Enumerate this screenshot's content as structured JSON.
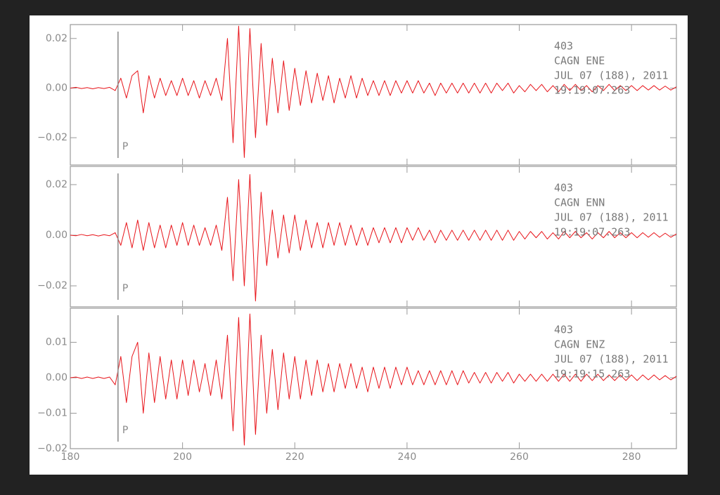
{
  "chart_data": [
    {
      "type": "line",
      "annotations": [
        "403",
        "CAGN   ENE",
        "JUL 07 (188), 2011",
        "19:19:07.263"
      ],
      "markers": [
        {
          "x": 188.5,
          "label": "P"
        }
      ],
      "xlim": [
        180,
        288
      ],
      "xticks": [
        180,
        200,
        220,
        240,
        260,
        280
      ],
      "ylim": [
        -0.031,
        0.0256
      ],
      "yticks": [
        {
          "value": -0.02,
          "label": "−0.02"
        },
        {
          "value": 0,
          "label": "0.00"
        },
        0.02
      ],
      "x": [
        180,
        181,
        182,
        183,
        184,
        185,
        186,
        187,
        188,
        189,
        190,
        191,
        192,
        193,
        194,
        195,
        196,
        197,
        198,
        199,
        200,
        201,
        202,
        203,
        204,
        205,
        206,
        207,
        208,
        209,
        210,
        211,
        212,
        213,
        214,
        215,
        216,
        217,
        218,
        219,
        220,
        221,
        222,
        223,
        224,
        225,
        226,
        227,
        228,
        229,
        230,
        231,
        232,
        233,
        234,
        235,
        236,
        237,
        238,
        239,
        240,
        241,
        242,
        243,
        244,
        245,
        246,
        247,
        248,
        249,
        250,
        251,
        252,
        253,
        254,
        255,
        256,
        257,
        258,
        259,
        260,
        261,
        262,
        263,
        264,
        265,
        266,
        267,
        268,
        269,
        270,
        271,
        272,
        273,
        274,
        275,
        276,
        277,
        278,
        279,
        280,
        281,
        282,
        283,
        284,
        285,
        286,
        287,
        288
      ],
      "series": [
        {
          "color": "#e8141a",
          "values": [
            0,
            0.0003,
            -0.0002,
            0.0002,
            -0.0003,
            0.0002,
            -0.0002,
            0.0003,
            -0.001,
            0.004,
            -0.004,
            0.005,
            0.007,
            -0.01,
            0.005,
            -0.004,
            0.004,
            -0.003,
            0.003,
            -0.003,
            0.004,
            -0.003,
            0.003,
            -0.004,
            0.003,
            -0.003,
            0.004,
            -0.005,
            0.02,
            -0.022,
            0.025,
            -0.028,
            0.024,
            -0.02,
            0.018,
            -0.015,
            0.012,
            -0.01,
            0.011,
            -0.009,
            0.008,
            -0.007,
            0.007,
            -0.006,
            0.006,
            -0.005,
            0.005,
            -0.006,
            0.004,
            -0.004,
            0.005,
            -0.004,
            0.004,
            -0.003,
            0.003,
            -0.003,
            0.003,
            -0.003,
            0.003,
            -0.002,
            0.003,
            -0.002,
            0.003,
            -0.002,
            0.002,
            -0.003,
            0.002,
            -0.002,
            0.002,
            -0.002,
            0.002,
            -0.002,
            0.002,
            -0.002,
            0.002,
            -0.002,
            0.002,
            -0.001,
            0.002,
            -0.002,
            0.001,
            -0.0015,
            0.0015,
            -0.001,
            0.0015,
            -0.0015,
            0.001,
            -0.0015,
            0.0015,
            -0.001,
            0.0015,
            -0.001,
            0.001,
            -0.0015,
            0.001,
            -0.001,
            0.0015,
            -0.001,
            0.001,
            -0.001,
            0.001,
            -0.001,
            0.001,
            -0.0008,
            0.001,
            -0.0008,
            0.0008,
            -0.0008,
            0.0005
          ]
        }
      ]
    },
    {
      "type": "line",
      "annotations": [
        "403",
        "CAGN   ENN",
        "JUL 07 (188), 2011",
        "19:19:07.263"
      ],
      "markers": [
        {
          "x": 188.5,
          "label": "P"
        }
      ],
      "xlim": [
        180,
        288
      ],
      "xticks": [
        180,
        200,
        220,
        240,
        260,
        280
      ],
      "ylim": [
        -0.0283,
        0.0272
      ],
      "yticks": [
        {
          "value": -0.02,
          "label": "−0.02"
        },
        {
          "value": 0,
          "label": "0.00"
        },
        0.02
      ],
      "x": [
        180,
        181,
        182,
        183,
        184,
        185,
        186,
        187,
        188,
        189,
        190,
        191,
        192,
        193,
        194,
        195,
        196,
        197,
        198,
        199,
        200,
        201,
        202,
        203,
        204,
        205,
        206,
        207,
        208,
        209,
        210,
        211,
        212,
        213,
        214,
        215,
        216,
        217,
        218,
        219,
        220,
        221,
        222,
        223,
        224,
        225,
        226,
        227,
        228,
        229,
        230,
        231,
        232,
        233,
        234,
        235,
        236,
        237,
        238,
        239,
        240,
        241,
        242,
        243,
        244,
        245,
        246,
        247,
        248,
        249,
        250,
        251,
        252,
        253,
        254,
        255,
        256,
        257,
        258,
        259,
        260,
        261,
        262,
        263,
        264,
        265,
        266,
        267,
        268,
        269,
        270,
        271,
        272,
        273,
        274,
        275,
        276,
        277,
        278,
        279,
        280,
        281,
        282,
        283,
        284,
        285,
        286,
        287,
        288
      ],
      "series": [
        {
          "color": "#e8141a",
          "values": [
            0,
            -0.0002,
            0.0003,
            -0.0002,
            0.0002,
            -0.0003,
            0.0002,
            -0.0002,
            0.001,
            -0.004,
            0.005,
            -0.005,
            0.006,
            -0.006,
            0.005,
            -0.005,
            0.004,
            -0.005,
            0.004,
            -0.004,
            0.005,
            -0.004,
            0.004,
            -0.004,
            0.003,
            -0.004,
            0.004,
            -0.006,
            0.015,
            -0.018,
            0.022,
            -0.02,
            0.024,
            -0.026,
            0.017,
            -0.012,
            0.01,
            -0.009,
            0.008,
            -0.007,
            0.008,
            -0.006,
            0.006,
            -0.005,
            0.005,
            -0.005,
            0.005,
            -0.004,
            0.005,
            -0.004,
            0.004,
            -0.004,
            0.003,
            -0.004,
            0.003,
            -0.003,
            0.003,
            -0.003,
            0.003,
            -0.003,
            0.003,
            -0.002,
            0.003,
            -0.002,
            0.002,
            -0.003,
            0.002,
            -0.002,
            0.002,
            -0.002,
            0.002,
            -0.002,
            0.002,
            -0.002,
            0.002,
            -0.002,
            0.002,
            -0.002,
            0.002,
            -0.002,
            0.0015,
            -0.0015,
            0.0015,
            -0.001,
            0.0015,
            -0.0015,
            0.001,
            -0.0015,
            0.0015,
            -0.001,
            0.0015,
            -0.001,
            0.001,
            -0.0015,
            0.001,
            -0.001,
            0.0015,
            -0.001,
            0.001,
            -0.001,
            0.001,
            -0.001,
            0.001,
            -0.0008,
            0.001,
            -0.0008,
            0.0008,
            -0.0008,
            0.0005
          ]
        }
      ]
    },
    {
      "type": "line",
      "annotations": [
        "403",
        "CAGN   ENZ",
        "JUL 07 (188), 2011",
        "19:19:15.263"
      ],
      "markers": [
        {
          "x": 188.5,
          "label": "P"
        }
      ],
      "xlim": [
        180,
        288
      ],
      "xticks": [
        180,
        200,
        220,
        240,
        260,
        280
      ],
      "ylim": [
        -0.02,
        0.0196
      ],
      "yticks": [
        {
          "value": -0.02,
          "label": "−0.02"
        },
        {
          "value": -0.01,
          "label": "−0.01"
        },
        {
          "value": 0,
          "label": "0.00"
        },
        0.01
      ],
      "x": [
        180,
        181,
        182,
        183,
        184,
        185,
        186,
        187,
        188,
        189,
        190,
        191,
        192,
        193,
        194,
        195,
        196,
        197,
        198,
        199,
        200,
        201,
        202,
        203,
        204,
        205,
        206,
        207,
        208,
        209,
        210,
        211,
        212,
        213,
        214,
        215,
        216,
        217,
        218,
        219,
        220,
        221,
        222,
        223,
        224,
        225,
        226,
        227,
        228,
        229,
        230,
        231,
        232,
        233,
        234,
        235,
        236,
        237,
        238,
        239,
        240,
        241,
        242,
        243,
        244,
        245,
        246,
        247,
        248,
        249,
        250,
        251,
        252,
        253,
        254,
        255,
        256,
        257,
        258,
        259,
        260,
        261,
        262,
        263,
        264,
        265,
        266,
        267,
        268,
        269,
        270,
        271,
        272,
        273,
        274,
        275,
        276,
        277,
        278,
        279,
        280,
        281,
        282,
        283,
        284,
        285,
        286,
        287,
        288
      ],
      "series": [
        {
          "color": "#e8141a",
          "values": [
            0,
            0.0002,
            -0.0002,
            0.0002,
            -0.0002,
            0.0002,
            -0.0002,
            0.0002,
            -0.002,
            0.006,
            -0.007,
            0.006,
            0.01,
            -0.01,
            0.007,
            -0.007,
            0.006,
            -0.006,
            0.005,
            -0.006,
            0.005,
            -0.005,
            0.005,
            -0.004,
            0.004,
            -0.005,
            0.005,
            -0.006,
            0.012,
            -0.015,
            0.017,
            -0.019,
            0.018,
            -0.016,
            0.012,
            -0.01,
            0.008,
            -0.009,
            0.007,
            -0.006,
            0.006,
            -0.006,
            0.005,
            -0.005,
            0.005,
            -0.004,
            0.004,
            -0.004,
            0.004,
            -0.003,
            0.004,
            -0.003,
            0.003,
            -0.004,
            0.003,
            -0.003,
            0.003,
            -0.003,
            0.003,
            -0.002,
            0.003,
            -0.002,
            0.002,
            -0.002,
            0.002,
            -0.002,
            0.002,
            -0.002,
            0.002,
            -0.002,
            0.002,
            -0.0015,
            0.0015,
            -0.0015,
            0.0015,
            -0.0015,
            0.0015,
            -0.001,
            0.0015,
            -0.0015,
            0.001,
            -0.001,
            0.001,
            -0.001,
            0.001,
            -0.001,
            0.001,
            -0.001,
            0.001,
            -0.001,
            0.001,
            -0.001,
            0.001,
            -0.0008,
            0.001,
            -0.0008,
            0.0008,
            -0.0008,
            0.0008,
            -0.0008,
            0.0008,
            -0.0008,
            0.0008,
            -0.0006,
            0.0008,
            -0.0006,
            0.0006,
            -0.0006,
            0.0004
          ]
        }
      ]
    }
  ]
}
